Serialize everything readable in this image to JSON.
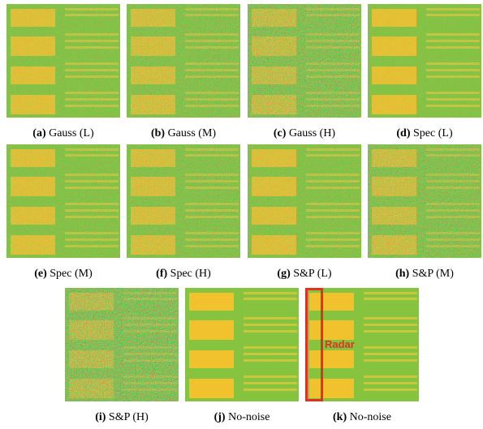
{
  "panels": [
    {
      "label": "(a)",
      "text": "Gauss (L)"
    },
    {
      "label": "(b)",
      "text": "Gauss (M)"
    },
    {
      "label": "(c)",
      "text": "Gauss (H)"
    },
    {
      "label": "(d)",
      "text": "Spec (L)"
    },
    {
      "label": "(e)",
      "text": "Spec (M)"
    },
    {
      "label": "(f)",
      "text": "Spec (H)"
    },
    {
      "label": "(g)",
      "text": "S&P (L)"
    },
    {
      "label": "(h)",
      "text": "S&P (M)"
    },
    {
      "label": "(i)",
      "text": "S&P (H)"
    },
    {
      "label": "(j)",
      "text": "No-noise"
    },
    {
      "label": "(k)",
      "text": "No-noise"
    }
  ],
  "radar_label": "Radar"
}
